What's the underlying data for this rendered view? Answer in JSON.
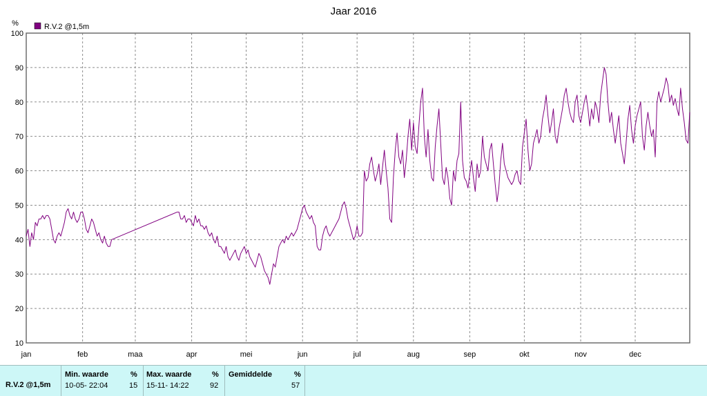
{
  "chart_data": {
    "type": "line",
    "title": "Jaar 2016",
    "ylabel": "%",
    "ylim": [
      10,
      100
    ],
    "yticks": [
      10,
      20,
      30,
      40,
      50,
      60,
      70,
      80,
      90,
      100
    ],
    "xlim": [
      1,
      366
    ],
    "xtick_labels": [
      "jan",
      "feb",
      "maa",
      "apr",
      "mei",
      "jun",
      "jul",
      "aug",
      "sep",
      "okt",
      "nov",
      "dec"
    ],
    "grid": true,
    "legend_position": "top-left",
    "series": [
      {
        "name": "R.V.2 @1,5m",
        "color": "#800080",
        "points": [
          [
            1,
            41
          ],
          [
            2,
            43
          ],
          [
            3,
            38
          ],
          [
            4,
            42
          ],
          [
            5,
            40
          ],
          [
            6,
            45
          ],
          [
            7,
            44
          ],
          [
            8,
            46
          ],
          [
            9,
            46
          ],
          [
            10,
            47
          ],
          [
            11,
            46
          ],
          [
            12,
            47
          ],
          [
            13,
            47
          ],
          [
            14,
            46
          ],
          [
            15,
            43
          ],
          [
            16,
            40
          ],
          [
            17,
            39
          ],
          [
            18,
            41
          ],
          [
            19,
            42
          ],
          [
            20,
            41
          ],
          [
            21,
            43
          ],
          [
            22,
            45
          ],
          [
            23,
            48
          ],
          [
            24,
            49
          ],
          [
            25,
            47
          ],
          [
            26,
            46
          ],
          [
            27,
            48
          ],
          [
            28,
            46
          ],
          [
            29,
            45
          ],
          [
            30,
            46
          ],
          [
            31,
            48
          ],
          [
            32,
            48
          ],
          [
            33,
            46
          ],
          [
            34,
            43
          ],
          [
            35,
            42
          ],
          [
            36,
            44
          ],
          [
            37,
            46
          ],
          [
            38,
            45
          ],
          [
            39,
            43
          ],
          [
            40,
            41
          ],
          [
            41,
            42
          ],
          [
            42,
            40
          ],
          [
            43,
            39
          ],
          [
            44,
            41
          ],
          [
            45,
            39
          ],
          [
            46,
            38
          ],
          [
            47,
            38
          ],
          [
            48,
            40
          ],
          [
            84,
            48
          ],
          [
            85,
            48
          ],
          [
            86,
            46
          ],
          [
            87,
            46
          ],
          [
            88,
            47
          ],
          [
            89,
            45
          ],
          [
            90,
            46
          ],
          [
            91,
            46
          ],
          [
            92,
            45
          ],
          [
            93,
            44
          ],
          [
            94,
            47
          ],
          [
            95,
            45
          ],
          [
            96,
            46
          ],
          [
            97,
            44
          ],
          [
            98,
            44
          ],
          [
            99,
            43
          ],
          [
            100,
            44
          ],
          [
            101,
            42
          ],
          [
            102,
            41
          ],
          [
            103,
            42
          ],
          [
            104,
            40
          ],
          [
            105,
            39
          ],
          [
            106,
            41
          ],
          [
            107,
            38
          ],
          [
            108,
            38
          ],
          [
            109,
            37
          ],
          [
            110,
            36
          ],
          [
            111,
            38
          ],
          [
            112,
            35
          ],
          [
            113,
            34
          ],
          [
            114,
            35
          ],
          [
            115,
            36
          ],
          [
            116,
            37
          ],
          [
            117,
            35
          ],
          [
            118,
            34
          ],
          [
            119,
            36
          ],
          [
            120,
            37
          ],
          [
            121,
            38
          ],
          [
            122,
            36
          ],
          [
            123,
            37
          ],
          [
            124,
            35
          ],
          [
            125,
            34
          ],
          [
            126,
            33
          ],
          [
            127,
            32
          ],
          [
            128,
            34
          ],
          [
            129,
            36
          ],
          [
            130,
            35
          ],
          [
            131,
            33
          ],
          [
            132,
            31
          ],
          [
            133,
            30
          ],
          [
            134,
            29
          ],
          [
            135,
            27
          ],
          [
            136,
            30
          ],
          [
            137,
            33
          ],
          [
            138,
            32
          ],
          [
            139,
            35
          ],
          [
            140,
            38
          ],
          [
            141,
            39
          ],
          [
            142,
            40
          ],
          [
            143,
            39
          ],
          [
            144,
            41
          ],
          [
            145,
            40
          ],
          [
            146,
            41
          ],
          [
            147,
            42
          ],
          [
            148,
            41
          ],
          [
            149,
            42
          ],
          [
            150,
            43
          ],
          [
            151,
            45
          ],
          [
            152,
            47
          ],
          [
            153,
            49
          ],
          [
            154,
            50
          ],
          [
            155,
            48
          ],
          [
            156,
            47
          ],
          [
            157,
            46
          ],
          [
            158,
            47
          ],
          [
            159,
            45
          ],
          [
            160,
            44
          ],
          [
            161,
            38
          ],
          [
            162,
            37
          ],
          [
            163,
            37
          ],
          [
            164,
            41
          ],
          [
            165,
            43
          ],
          [
            166,
            44
          ],
          [
            167,
            42
          ],
          [
            168,
            41
          ],
          [
            169,
            42
          ],
          [
            170,
            43
          ],
          [
            171,
            44
          ],
          [
            172,
            45
          ],
          [
            173,
            46
          ],
          [
            174,
            48
          ],
          [
            175,
            50
          ],
          [
            176,
            51
          ],
          [
            177,
            49
          ],
          [
            178,
            46
          ],
          [
            179,
            44
          ],
          [
            180,
            42
          ],
          [
            181,
            40
          ],
          [
            182,
            41
          ],
          [
            183,
            44
          ],
          [
            184,
            41
          ],
          [
            185,
            41
          ],
          [
            186,
            42
          ],
          [
            187,
            60
          ],
          [
            188,
            57
          ],
          [
            189,
            58
          ],
          [
            190,
            62
          ],
          [
            191,
            64
          ],
          [
            192,
            60
          ],
          [
            193,
            57
          ],
          [
            194,
            59
          ],
          [
            195,
            62
          ],
          [
            196,
            56
          ],
          [
            197,
            61
          ],
          [
            198,
            66
          ],
          [
            199,
            60
          ],
          [
            200,
            55
          ],
          [
            201,
            46
          ],
          [
            202,
            45
          ],
          [
            203,
            58
          ],
          [
            204,
            66
          ],
          [
            205,
            71
          ],
          [
            206,
            64
          ],
          [
            207,
            62
          ],
          [
            208,
            66
          ],
          [
            209,
            58
          ],
          [
            210,
            63
          ],
          [
            211,
            70
          ],
          [
            212,
            75
          ],
          [
            213,
            66
          ],
          [
            214,
            74
          ],
          [
            215,
            67
          ],
          [
            216,
            65
          ],
          [
            217,
            73
          ],
          [
            218,
            80
          ],
          [
            219,
            84
          ],
          [
            220,
            70
          ],
          [
            221,
            64
          ],
          [
            222,
            72
          ],
          [
            223,
            63
          ],
          [
            224,
            58
          ],
          [
            225,
            57
          ],
          [
            226,
            67
          ],
          [
            227,
            73
          ],
          [
            228,
            78
          ],
          [
            229,
            68
          ],
          [
            230,
            58
          ],
          [
            231,
            56
          ],
          [
            232,
            61
          ],
          [
            233,
            58
          ],
          [
            234,
            52
          ],
          [
            235,
            50
          ],
          [
            236,
            60
          ],
          [
            237,
            57
          ],
          [
            238,
            63
          ],
          [
            239,
            65
          ],
          [
            240,
            80
          ],
          [
            241,
            63
          ],
          [
            242,
            58
          ],
          [
            243,
            57
          ],
          [
            244,
            55
          ],
          [
            245,
            59
          ],
          [
            246,
            63
          ],
          [
            247,
            58
          ],
          [
            248,
            54
          ],
          [
            249,
            62
          ],
          [
            250,
            58
          ],
          [
            251,
            60
          ],
          [
            252,
            70
          ],
          [
            253,
            64
          ],
          [
            254,
            62
          ],
          [
            255,
            60
          ],
          [
            256,
            66
          ],
          [
            257,
            68
          ],
          [
            258,
            62
          ],
          [
            259,
            56
          ],
          [
            260,
            51
          ],
          [
            261,
            55
          ],
          [
            262,
            63
          ],
          [
            263,
            68
          ],
          [
            264,
            62
          ],
          [
            265,
            60
          ],
          [
            266,
            58
          ],
          [
            267,
            57
          ],
          [
            268,
            56
          ],
          [
            269,
            57
          ],
          [
            270,
            59
          ],
          [
            271,
            60
          ],
          [
            272,
            57
          ],
          [
            273,
            56
          ],
          [
            274,
            67
          ],
          [
            275,
            71
          ],
          [
            276,
            75
          ],
          [
            277,
            66
          ],
          [
            278,
            60
          ],
          [
            279,
            62
          ],
          [
            280,
            68
          ],
          [
            281,
            70
          ],
          [
            282,
            72
          ],
          [
            283,
            68
          ],
          [
            284,
            70
          ],
          [
            285,
            75
          ],
          [
            286,
            78
          ],
          [
            287,
            82
          ],
          [
            288,
            76
          ],
          [
            289,
            71
          ],
          [
            290,
            74
          ],
          [
            291,
            78
          ],
          [
            292,
            70
          ],
          [
            293,
            68
          ],
          [
            294,
            72
          ],
          [
            295,
            75
          ],
          [
            296,
            78
          ],
          [
            297,
            82
          ],
          [
            298,
            84
          ],
          [
            299,
            80
          ],
          [
            300,
            77
          ],
          [
            301,
            75
          ],
          [
            302,
            74
          ],
          [
            303,
            80
          ],
          [
            304,
            82
          ],
          [
            305,
            76
          ],
          [
            306,
            74
          ],
          [
            307,
            77
          ],
          [
            308,
            80
          ],
          [
            309,
            82
          ],
          [
            310,
            78
          ],
          [
            311,
            73
          ],
          [
            312,
            78
          ],
          [
            313,
            75
          ],
          [
            314,
            80
          ],
          [
            315,
            78
          ],
          [
            316,
            74
          ],
          [
            317,
            82
          ],
          [
            318,
            86
          ],
          [
            319,
            90
          ],
          [
            320,
            88
          ],
          [
            321,
            80
          ],
          [
            322,
            74
          ],
          [
            323,
            77
          ],
          [
            324,
            72
          ],
          [
            325,
            68
          ],
          [
            326,
            72
          ],
          [
            327,
            76
          ],
          [
            328,
            68
          ],
          [
            329,
            65
          ],
          [
            330,
            62
          ],
          [
            331,
            68
          ],
          [
            332,
            75
          ],
          [
            333,
            79
          ],
          [
            334,
            72
          ],
          [
            335,
            68
          ],
          [
            336,
            73
          ],
          [
            337,
            76
          ],
          [
            338,
            78
          ],
          [
            339,
            80
          ],
          [
            340,
            70
          ],
          [
            341,
            66
          ],
          [
            342,
            73
          ],
          [
            343,
            77
          ],
          [
            344,
            73
          ],
          [
            345,
            70
          ],
          [
            346,
            72
          ],
          [
            347,
            64
          ],
          [
            348,
            80
          ],
          [
            349,
            83
          ],
          [
            350,
            80
          ],
          [
            351,
            82
          ],
          [
            352,
            84
          ],
          [
            353,
            87
          ],
          [
            354,
            85
          ],
          [
            355,
            80
          ],
          [
            356,
            82
          ],
          [
            357,
            79
          ],
          [
            358,
            81
          ],
          [
            359,
            78
          ],
          [
            360,
            76
          ],
          [
            361,
            84
          ],
          [
            362,
            78
          ],
          [
            363,
            74
          ],
          [
            364,
            69
          ],
          [
            365,
            68
          ],
          [
            366,
            77
          ]
        ]
      }
    ]
  },
  "stats": {
    "series_label": "R.V.2 @1,5m",
    "min_header": "Min. waarde",
    "min_unit": "%",
    "min_time": "10-05-  22:04",
    "min_value": "15",
    "max_header": "Max. waarde",
    "max_unit": "%",
    "max_time": "15-11-  14:22",
    "max_value": "92",
    "avg_header": "Gemiddelde",
    "avg_unit": "%",
    "avg_value": "57"
  }
}
